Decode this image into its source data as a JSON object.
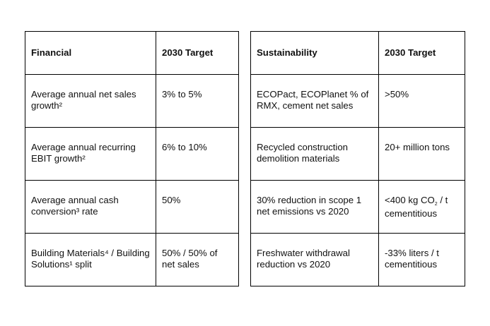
{
  "financial_table": {
    "header": {
      "metric": "Financial",
      "target": "2030 Target"
    },
    "rows": [
      {
        "metric": "Average annual net sales growth²",
        "target": "3% to 5%"
      },
      {
        "metric": "Average annual recurring EBIT growth²",
        "target": "6% to 10%"
      },
      {
        "metric": "Average annual cash conversion³ rate",
        "target": "50%"
      },
      {
        "metric": "Building Materials⁴ / Building Solutions¹ split",
        "target": "50% / 50% of net sales"
      }
    ]
  },
  "sustainability_table": {
    "header": {
      "metric": "Sustainability",
      "target": "2030 Target"
    },
    "rows": [
      {
        "metric": "ECOPact, ECOPlanet % of RMX, cement net sales",
        "target": ">50%"
      },
      {
        "metric": "Recycled construction demolition materials",
        "target": "20+ million tons"
      },
      {
        "metric": "30% reduction in scope 1 net emissions vs 2020",
        "target_pre": "<400 kg CO",
        "target_sub": "2",
        "target_post": " / t cementitious"
      },
      {
        "metric": "Freshwater withdrawal reduction vs 2020",
        "target": "-33% liters / t cementitious"
      }
    ]
  }
}
